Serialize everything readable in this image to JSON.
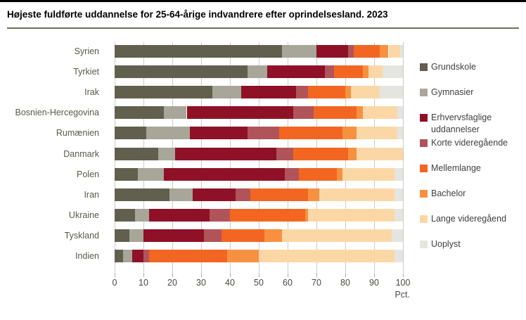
{
  "chart_data": {
    "type": "bar",
    "orientation": "horizontal",
    "stacked": true,
    "title": "Højeste fuldførte uddannelse for 25-64-årige indvandrere efter oprindelsesland. 2023",
    "xlabel": "Pct.",
    "xlim": [
      0,
      100
    ],
    "xticks": [
      0,
      10,
      20,
      30,
      40,
      50,
      60,
      70,
      80,
      90,
      100
    ],
    "grid": "vertical",
    "legend_position": "right",
    "categories": [
      "Syrien",
      "Tyrkiet",
      "Irak",
      "Bosnien-Hercegovina",
      "Rumænien",
      "Danmark",
      "Polen",
      "Iran",
      "Ukraine",
      "Tyskland",
      "Indien"
    ],
    "series": [
      {
        "name": "Grundskole",
        "color": "#615f4e",
        "values": [
          58,
          46,
          34,
          17,
          11,
          15,
          8,
          19,
          7,
          5,
          3
        ]
      },
      {
        "name": "Gymnasier",
        "color": "#a7a699",
        "values": [
          12,
          7,
          10,
          8,
          15,
          6,
          9,
          8,
          5,
          5,
          3
        ]
      },
      {
        "name": "Erhvervsfaglige uddannelser",
        "color": "#8e1127",
        "values": [
          11,
          20,
          19,
          37,
          20,
          35,
          42,
          15,
          21,
          21,
          4
        ]
      },
      {
        "name": "Korte videregående",
        "color": "#b05459",
        "values": [
          2,
          3,
          4,
          7,
          11,
          6,
          5,
          5,
          7,
          6,
          2
        ]
      },
      {
        "name": "Mellemlange",
        "color": "#f26621",
        "values": [
          9,
          10,
          13,
          15,
          22,
          19,
          13,
          20,
          26,
          15,
          27
        ]
      },
      {
        "name": "Bachelor",
        "color": "#f79140",
        "values": [
          3,
          2,
          2,
          2,
          5,
          3,
          2,
          4,
          1,
          6,
          11
        ]
      },
      {
        "name": "Lange videregåend",
        "color": "#fcd7a6",
        "values": [
          4,
          5,
          10,
          12,
          14,
          16,
          18,
          26,
          30,
          38,
          47
        ]
      },
      {
        "name": "Uoplyst",
        "color": "#e4e4e0",
        "values": [
          1,
          7,
          8,
          2,
          2,
          0,
          3,
          3,
          3,
          4,
          3
        ]
      }
    ]
  }
}
